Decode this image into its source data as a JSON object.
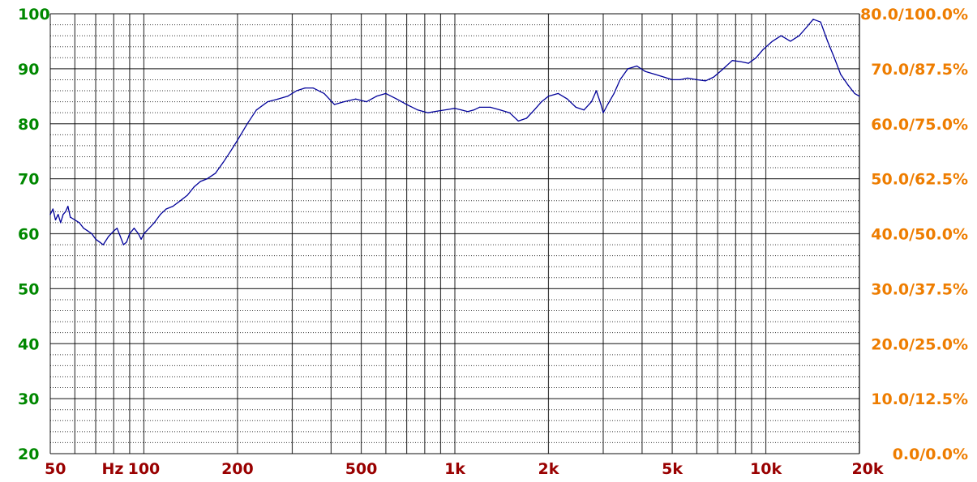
{
  "chart_data": {
    "type": "line",
    "x_scale": "log",
    "xlim": [
      50,
      20000
    ],
    "ylim": [
      20,
      100
    ],
    "grid": true,
    "x_ticks": [
      {
        "value": 50,
        "label": "50"
      },
      {
        "value": 100,
        "label": "100"
      },
      {
        "value": 200,
        "label": "200"
      },
      {
        "value": 500,
        "label": "500"
      },
      {
        "value": 1000,
        "label": "1k"
      },
      {
        "value": 2000,
        "label": "2k"
      },
      {
        "value": 5000,
        "label": "5k"
      },
      {
        "value": 10000,
        "label": "10k"
      },
      {
        "value": 20000,
        "label": "20k"
      }
    ],
    "x_unit_label": "Hz",
    "y_ticks": [
      {
        "value": 100,
        "label": "100"
      },
      {
        "value": 90,
        "label": "90"
      },
      {
        "value": 80,
        "label": "80"
      },
      {
        "value": 70,
        "label": "70"
      },
      {
        "value": 60,
        "label": "60"
      },
      {
        "value": 50,
        "label": "50"
      },
      {
        "value": 40,
        "label": "40"
      },
      {
        "value": 30,
        "label": "30"
      },
      {
        "value": 20,
        "label": "20"
      }
    ],
    "y2_ticks": [
      {
        "value": 100,
        "label": "80.0/100.0%"
      },
      {
        "value": 90,
        "label": "70.0/87.5%"
      },
      {
        "value": 80,
        "label": "60.0/75.0%"
      },
      {
        "value": 70,
        "label": "50.0/62.5%"
      },
      {
        "value": 60,
        "label": "40.0/50.0%"
      },
      {
        "value": 50,
        "label": "30.0/37.5%"
      },
      {
        "value": 40,
        "label": "20.0/25.0%"
      },
      {
        "value": 30,
        "label": "10.0/12.5%"
      },
      {
        "value": 20,
        "label": "0.0/0.0%"
      }
    ],
    "colors": {
      "y_tick_labels": "#008800",
      "y2_tick_labels": "#ee7d00",
      "x_tick_labels": "#990000",
      "major_grid": "#000000",
      "minor_grid": "#000000",
      "series": "#000099"
    },
    "series": [
      {
        "points": [
          [
            50,
            63.5
          ],
          [
            51,
            64.5
          ],
          [
            52,
            62.5
          ],
          [
            53,
            63.5
          ],
          [
            54,
            62
          ],
          [
            55,
            63.5
          ],
          [
            56,
            64
          ],
          [
            57,
            65
          ],
          [
            58,
            63
          ],
          [
            60,
            62.5
          ],
          [
            62,
            62
          ],
          [
            64,
            61
          ],
          [
            66,
            60.5
          ],
          [
            68,
            60
          ],
          [
            70,
            59
          ],
          [
            72,
            58.5
          ],
          [
            74,
            58
          ],
          [
            77,
            59.5
          ],
          [
            80,
            60.5
          ],
          [
            82,
            61
          ],
          [
            84,
            59.5
          ],
          [
            86,
            58
          ],
          [
            88,
            58.5
          ],
          [
            90,
            60
          ],
          [
            93,
            61
          ],
          [
            96,
            60
          ],
          [
            98,
            59
          ],
          [
            100,
            60
          ],
          [
            104,
            61
          ],
          [
            108,
            62
          ],
          [
            113,
            63.5
          ],
          [
            118,
            64.5
          ],
          [
            124,
            65
          ],
          [
            131,
            66
          ],
          [
            138,
            67
          ],
          [
            145,
            68.5
          ],
          [
            152,
            69.5
          ],
          [
            160,
            70
          ],
          [
            170,
            71
          ],
          [
            180,
            73
          ],
          [
            190,
            75
          ],
          [
            200,
            77
          ],
          [
            215,
            80
          ],
          [
            230,
            82.5
          ],
          [
            250,
            84
          ],
          [
            270,
            84.5
          ],
          [
            290,
            85
          ],
          [
            310,
            86
          ],
          [
            330,
            86.5
          ],
          [
            350,
            86.5
          ],
          [
            380,
            85.5
          ],
          [
            410,
            83.5
          ],
          [
            440,
            84
          ],
          [
            480,
            84.5
          ],
          [
            520,
            84
          ],
          [
            560,
            85
          ],
          [
            600,
            85.5
          ],
          [
            650,
            84.5
          ],
          [
            700,
            83.5
          ],
          [
            760,
            82.5
          ],
          [
            820,
            82
          ],
          [
            880,
            82.3
          ],
          [
            950,
            82.6
          ],
          [
            1000,
            82.8
          ],
          [
            1050,
            82.5
          ],
          [
            1100,
            82.2
          ],
          [
            1150,
            82.5
          ],
          [
            1200,
            83
          ],
          [
            1300,
            83
          ],
          [
            1400,
            82.5
          ],
          [
            1500,
            82
          ],
          [
            1600,
            80.5
          ],
          [
            1700,
            81
          ],
          [
            1800,
            82.5
          ],
          [
            1900,
            84
          ],
          [
            2000,
            85
          ],
          [
            2150,
            85.5
          ],
          [
            2300,
            84.5
          ],
          [
            2450,
            83
          ],
          [
            2600,
            82.5
          ],
          [
            2750,
            84
          ],
          [
            2850,
            86
          ],
          [
            2950,
            83.5
          ],
          [
            3000,
            82
          ],
          [
            3100,
            83.5
          ],
          [
            3250,
            85.5
          ],
          [
            3400,
            88
          ],
          [
            3600,
            90
          ],
          [
            3850,
            90.5
          ],
          [
            4100,
            89.5
          ],
          [
            4400,
            89
          ],
          [
            4700,
            88.5
          ],
          [
            5000,
            88
          ],
          [
            5300,
            88
          ],
          [
            5600,
            88.3
          ],
          [
            6000,
            88
          ],
          [
            6400,
            87.8
          ],
          [
            6800,
            88.5
          ],
          [
            7300,
            90
          ],
          [
            7800,
            91.5
          ],
          [
            8300,
            91.3
          ],
          [
            8800,
            91
          ],
          [
            9300,
            92
          ],
          [
            9800,
            93.5
          ],
          [
            10500,
            95
          ],
          [
            11200,
            96
          ],
          [
            12000,
            95
          ],
          [
            12800,
            96
          ],
          [
            13500,
            97.5
          ],
          [
            14200,
            99
          ],
          [
            15000,
            98.5
          ],
          [
            15800,
            95
          ],
          [
            16600,
            92
          ],
          [
            17400,
            89
          ],
          [
            18400,
            87
          ],
          [
            19300,
            85.5
          ],
          [
            20000,
            85
          ]
        ]
      }
    ]
  }
}
